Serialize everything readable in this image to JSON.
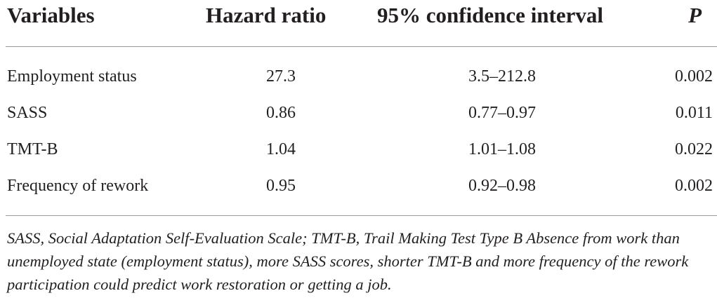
{
  "table": {
    "headers": {
      "variables": "Variables",
      "hazard_ratio": "Hazard ratio",
      "ci": "95% confidence interval",
      "p": "P"
    },
    "rows": [
      {
        "variable": "Employment status",
        "hazard_ratio": "27.3",
        "ci": "3.5–212.8",
        "p": "0.002"
      },
      {
        "variable": "SASS",
        "hazard_ratio": "0.86",
        "ci": "0.77–0.97",
        "p": "0.011"
      },
      {
        "variable": "TMT-B",
        "hazard_ratio": "1.04",
        "ci": "1.01–1.08",
        "p": "0.022"
      },
      {
        "variable": "Frequency of rework",
        "hazard_ratio": "0.95",
        "ci": "0.92–0.98",
        "p": "0.002"
      }
    ],
    "footnote": "SASS, Social Adaptation Self-Evaluation Scale; TMT-B, Trail Making Test Type B Absence from work than unemployed state (employment status), more SASS scores, shorter TMT-B and more frequency of the rework participation could predict work restoration or getting a job."
  }
}
